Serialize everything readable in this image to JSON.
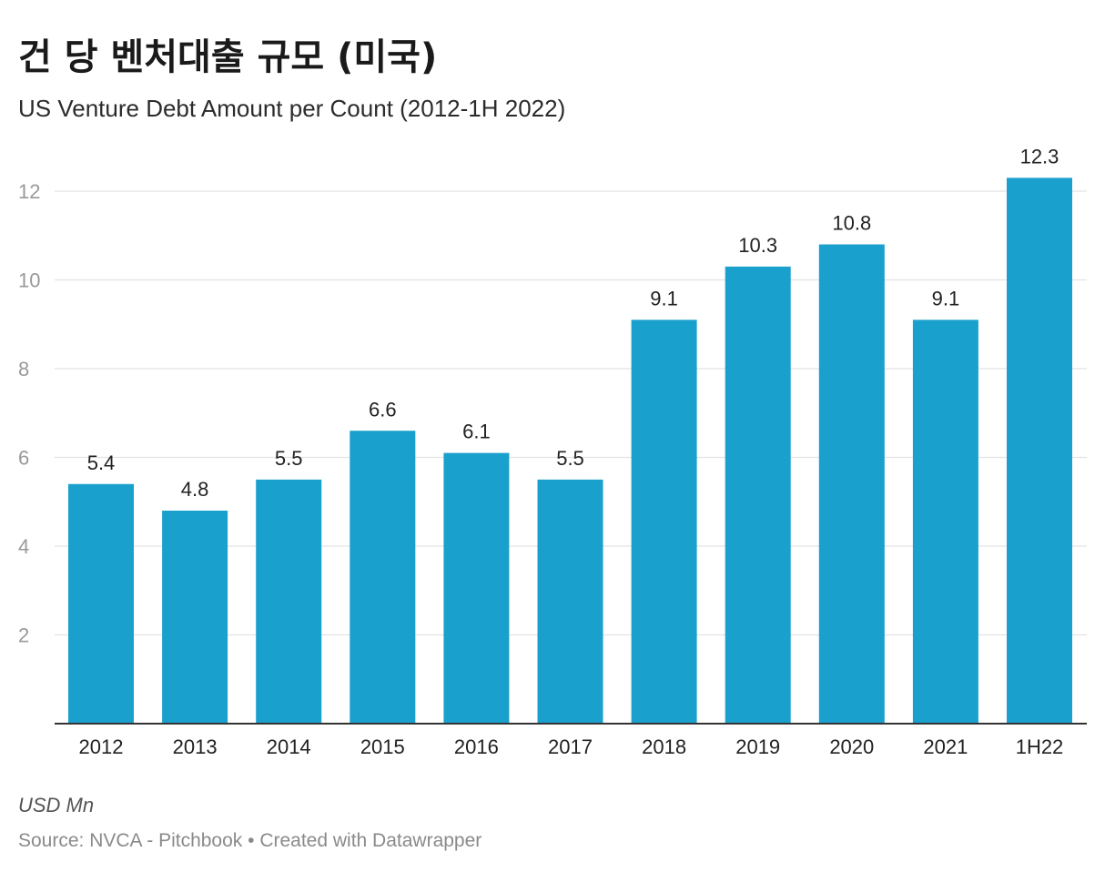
{
  "header": {
    "title": "건 당 벤처대출 규모 (미국)",
    "subtitle": "US Venture Debt Amount per Count (2012-1H 2022)"
  },
  "footer": {
    "notes": "USD Mn",
    "source_label": "Source: ",
    "source": "NVCA - Pitchbook",
    "separator": " • ",
    "credit": "Created with Datawrapper"
  },
  "colors": {
    "bar": "#1aa0cc",
    "grid": "#e2e2e2",
    "axis": "#333333",
    "tick_text": "#999999"
  },
  "chart_data": {
    "type": "bar",
    "categories": [
      "2012",
      "2013",
      "2014",
      "2015",
      "2016",
      "2017",
      "2018",
      "2019",
      "2020",
      "2021",
      "1H22"
    ],
    "values": [
      5.4,
      4.8,
      5.5,
      6.6,
      6.1,
      5.5,
      9.1,
      10.3,
      10.8,
      9.1,
      12.3
    ],
    "value_labels": [
      "5.4",
      "4.8",
      "5.5",
      "6.6",
      "6.1",
      "5.5",
      "9.1",
      "10.3",
      "10.8",
      "9.1",
      "12.3"
    ],
    "yticks": [
      2,
      4,
      6,
      8,
      10,
      12
    ],
    "ytick_labels": [
      "2",
      "4",
      "6",
      "8",
      "10",
      "12"
    ],
    "ylim": [
      0,
      12.3
    ],
    "grid": true,
    "title": "건 당 벤처대출 규모 (미국)",
    "xlabel": "",
    "ylabel": ""
  }
}
